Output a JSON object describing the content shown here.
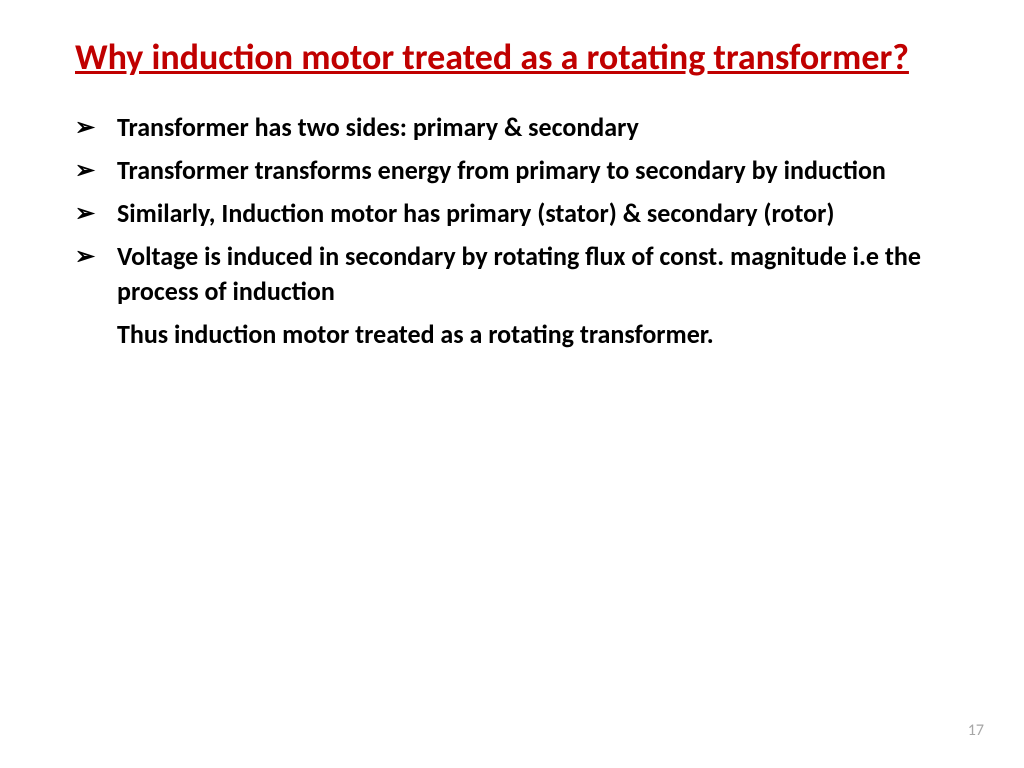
{
  "slide": {
    "title": "Why induction motor treated as a rotating transformer?",
    "bullet_marker": "➢",
    "bullets": [
      "Transformer has two sides: primary & secondary",
      "Transformer transforms energy from primary to secondary by induction",
      "Similarly, Induction motor has primary (stator) & secondary (rotor)",
      "Voltage is induced in secondary by rotating flux of const. magnitude i.e the process of induction"
    ],
    "conclusion": "Thus  induction motor treated as a rotating transformer.",
    "page_number": "17"
  },
  "style": {
    "title_color": "#c00000",
    "title_fontsize": 36,
    "body_color": "#000000",
    "body_fontsize": 26,
    "page_number_color": "#a6a6a6",
    "page_number_fontsize": 16,
    "background_color": "#ffffff"
  }
}
